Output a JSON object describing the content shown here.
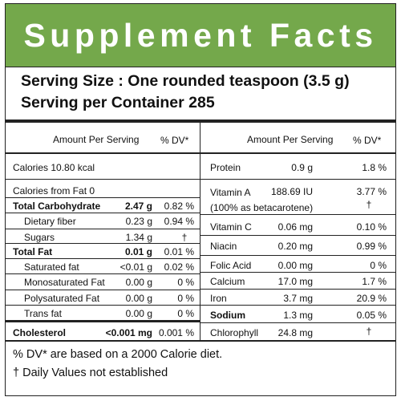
{
  "title": "Supplement Facts",
  "serving_size": "Serving Size : One rounded teaspoon (3.5 g)",
  "servings_per_container": "Serving per Container 285",
  "left_table": {
    "header_amount": "Amount Per Serving",
    "header_dv": "% DV*",
    "calories": "Calories 10.80 kcal",
    "calories_from_fat": "Calories from Fat 0",
    "rows": [
      {
        "name": "Total Carbohydrate",
        "amount": "2.47 g",
        "dv": "0.82 %"
      },
      {
        "name": "Dietary fiber",
        "amount": "0.23 g",
        "dv": "0.94 %"
      },
      {
        "name": "Sugars",
        "amount": "1.34 g",
        "dv": "†"
      },
      {
        "name": "Total Fat",
        "amount": "0.01 g",
        "dv": "0.01 %"
      },
      {
        "name": "Saturated fat",
        "amount": "<0.01 g",
        "dv": "0.02 %"
      },
      {
        "name": "Monosaturated Fat",
        "amount": "0.00 g",
        "dv": "0 %"
      },
      {
        "name": "Polysaturated Fat",
        "amount": "0.00 g",
        "dv": "0 %"
      },
      {
        "name": "Trans fat",
        "amount": "0.00 g",
        "dv": "0 %"
      },
      {
        "name": "Cholesterol",
        "amount": "<0.001 mg",
        "dv": "0.001 %"
      }
    ]
  },
  "right_table": {
    "header_amount": "Amount Per Serving",
    "header_dv": "% DV*",
    "rows": [
      {
        "name": "Protein",
        "amount": "0.9 g",
        "dv": "1.8 %"
      },
      {
        "name": "Vitamin A",
        "amount": "188.69 IU",
        "dv": "3.77 %",
        "sub": "(100% as betacarotene)",
        "sub_dv": "†"
      },
      {
        "name": "Vitamin C",
        "amount": "0.06 mg",
        "dv": "0.10 %"
      },
      {
        "name": "Niacin",
        "amount": "0.20 mg",
        "dv": "0.99 %"
      },
      {
        "name": "Folic Acid",
        "amount": "0.00 mg",
        "dv": "0 %"
      },
      {
        "name": "Calcium",
        "amount": "17.0 mg",
        "dv": "1.7 %"
      },
      {
        "name": "Iron",
        "amount": "3.7 mg",
        "dv": "20.9 %"
      },
      {
        "name": "Sodium",
        "amount": "1.3 mg",
        "dv": "0.05 %"
      },
      {
        "name": "Chlorophyll",
        "amount": "24.8 mg",
        "dv": "†"
      }
    ]
  },
  "footnotes": [
    "% DV* are based on a 2000 Calorie diet.",
    "† Daily Values not established"
  ],
  "colors": {
    "banner": "#74a84b",
    "text": "#111111",
    "rules": "#222222"
  }
}
